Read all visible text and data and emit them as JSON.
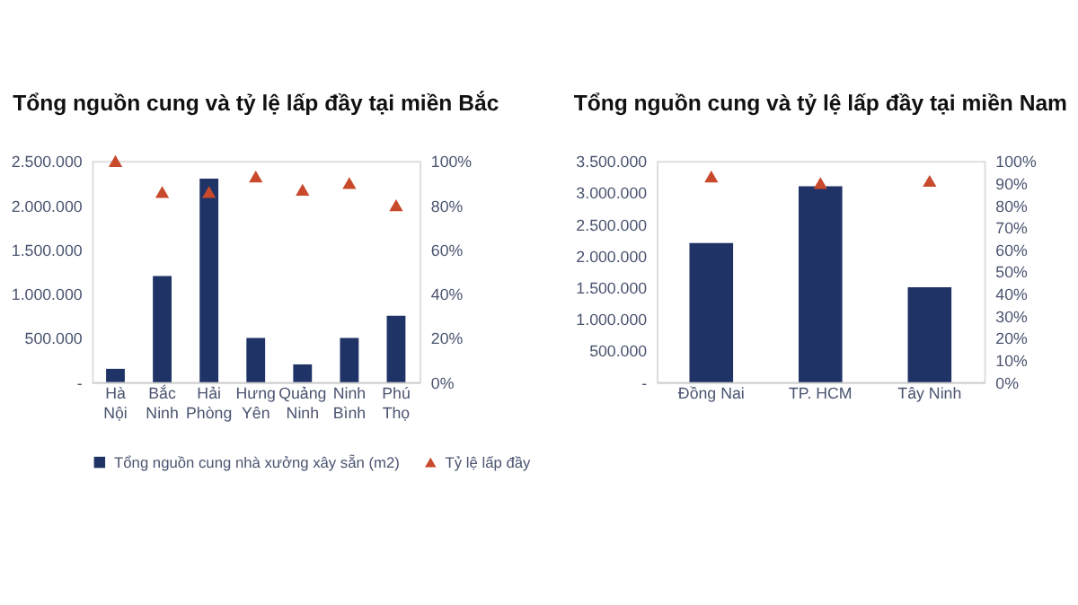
{
  "chart_data": [
    {
      "type": "bar",
      "title": "Tổng nguồn cung và tỷ lệ lấp đầy tại miền Bắc",
      "categories": [
        "Hà Nội",
        "Bắc Ninh",
        "Hải Phòng",
        "Hưng Yên",
        "Quảng Ninh",
        "Ninh Bình",
        "Phú Thọ"
      ],
      "series": [
        {
          "name": "Tổng nguồn cung nhà xưởng xây sẵn (m2)",
          "color": "#1f3366",
          "values": [
            150000,
            1200000,
            2300000,
            500000,
            200000,
            500000,
            750000
          ]
        },
        {
          "name": "Tỷ lệ lấp đầy",
          "type": "scatter",
          "axis": "y2",
          "marker": "triangle",
          "color": "#c8492b",
          "values": [
            100,
            86,
            86,
            93,
            87,
            90,
            80
          ]
        }
      ],
      "ylim": [
        0,
        2500000
      ],
      "yticks": [
        {
          "value": 0,
          "label": "-"
        },
        {
          "value": 500000,
          "label": "500.000"
        },
        {
          "value": 1000000,
          "label": "1.000.000"
        },
        {
          "value": 1500000,
          "label": "1.500.000"
        },
        {
          "value": 2000000,
          "label": "2.000.000"
        },
        {
          "value": 2500000,
          "label": "2.500.000"
        }
      ],
      "y2lim": [
        0,
        100
      ],
      "y2ticks": [
        {
          "value": 0,
          "label": "0%"
        },
        {
          "value": 20,
          "label": "20%"
        },
        {
          "value": 40,
          "label": "40%"
        },
        {
          "value": 60,
          "label": "60%"
        },
        {
          "value": 80,
          "label": "80%"
        },
        {
          "value": 100,
          "label": "100%"
        }
      ],
      "legend": "bottom",
      "grid": false
    },
    {
      "type": "bar",
      "title": "Tổng nguồn cung và tỷ lệ lấp đầy tại miền Nam",
      "categories": [
        "Đồng Nai",
        "TP. HCM",
        "Tây Ninh"
      ],
      "series": [
        {
          "name": "Tổng nguồn cung nhà xưởng xây sẵn (m2)",
          "color": "#1f3366",
          "values": [
            2200000,
            3100000,
            1500000
          ]
        },
        {
          "name": "Tỷ lệ lấp đầy",
          "type": "scatter",
          "axis": "y2",
          "marker": "triangle",
          "color": "#c8492b",
          "values": [
            93,
            90,
            91
          ]
        }
      ],
      "ylim": [
        0,
        3500000
      ],
      "yticks": [
        {
          "value": 0,
          "label": "-"
        },
        {
          "value": 500000,
          "label": "500.000"
        },
        {
          "value": 1000000,
          "label": "1.000.000"
        },
        {
          "value": 1500000,
          "label": "1.500.000"
        },
        {
          "value": 2000000,
          "label": "2.000.000"
        },
        {
          "value": 2500000,
          "label": "2.500.000"
        },
        {
          "value": 3000000,
          "label": "3.000.000"
        },
        {
          "value": 3500000,
          "label": "3.500.000"
        }
      ],
      "y2lim": [
        0,
        100
      ],
      "y2ticks": [
        {
          "value": 0,
          "label": "0%"
        },
        {
          "value": 10,
          "label": "10%"
        },
        {
          "value": 20,
          "label": "20%"
        },
        {
          "value": 30,
          "label": "30%"
        },
        {
          "value": 40,
          "label": "40%"
        },
        {
          "value": 50,
          "label": "50%"
        },
        {
          "value": 60,
          "label": "60%"
        },
        {
          "value": 70,
          "label": "70%"
        },
        {
          "value": 80,
          "label": "80%"
        },
        {
          "value": 90,
          "label": "90%"
        },
        {
          "value": 100,
          "label": "100%"
        }
      ],
      "legend": "bottom",
      "grid": false
    }
  ]
}
